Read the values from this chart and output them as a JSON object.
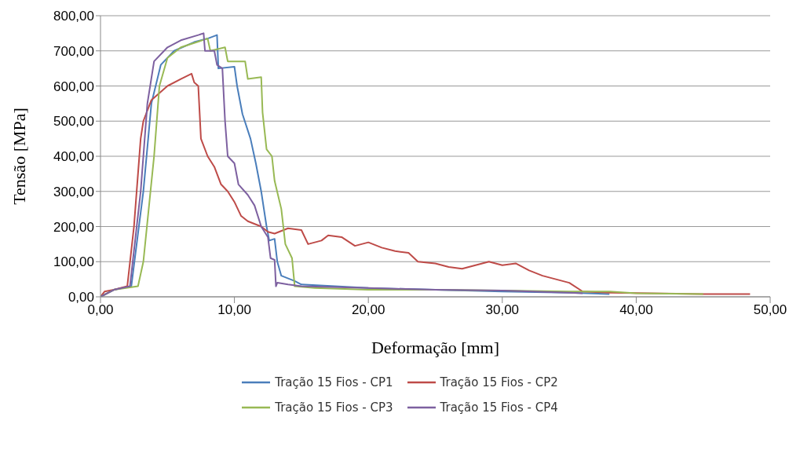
{
  "chart_data": {
    "type": "line",
    "xlabel": "Deformação [mm]",
    "ylabel": "Tensão [MPa]",
    "xlim": [
      0,
      50
    ],
    "ylim": [
      0,
      800
    ],
    "xticks": [
      {
        "value": 0,
        "label": "0,00"
      },
      {
        "value": 10,
        "label": "10,00"
      },
      {
        "value": 20,
        "label": "20,00"
      },
      {
        "value": 30,
        "label": "30,00"
      },
      {
        "value": 40,
        "label": "40,00"
      },
      {
        "value": 50,
        "label": "50,00"
      }
    ],
    "yticks": [
      {
        "value": 0,
        "label": "0,00"
      },
      {
        "value": 100,
        "label": "100,00"
      },
      {
        "value": 200,
        "label": "200,00"
      },
      {
        "value": 300,
        "label": "300,00"
      },
      {
        "value": 400,
        "label": "400,00"
      },
      {
        "value": 500,
        "label": "500,00"
      },
      {
        "value": 600,
        "label": "600,00"
      },
      {
        "value": 700,
        "label": "700,00"
      },
      {
        "value": 800,
        "label": "800,00"
      }
    ],
    "grid": "y",
    "legend": "bottom",
    "marker": "none",
    "line_style": "solid",
    "series": [
      {
        "name": "Tração 15 Fios - CP1",
        "color": "#4a7ebb",
        "x": [
          0,
          1,
          2.3,
          3.2,
          3.8,
          4.5,
          5.5,
          7,
          8,
          8.7,
          8.8,
          10,
          10.2,
          10.6,
          11.2,
          11.6,
          12,
          12.2,
          12.4,
          12.6,
          13,
          13.2,
          13.5,
          14.5,
          15,
          20,
          25,
          30,
          35,
          38
        ],
        "values": [
          0,
          20,
          30,
          300,
          550,
          660,
          700,
          725,
          735,
          745,
          650,
          655,
          600,
          520,
          450,
          380,
          300,
          250,
          200,
          160,
          165,
          100,
          60,
          45,
          35,
          25,
          20,
          15,
          12,
          8
        ]
      },
      {
        "name": "Tração 15 Fios - CP2",
        "color": "#be4b48",
        "x": [
          0,
          0.3,
          1,
          2,
          2.5,
          3,
          3.2,
          3.8,
          5,
          6,
          6.8,
          7,
          7.3,
          7.5,
          8,
          8.5,
          9,
          9.5,
          10,
          10.5,
          11,
          12,
          12.5,
          13,
          14,
          15,
          15.5,
          16.5,
          17,
          18,
          19,
          20,
          21,
          22,
          23,
          23.7,
          25,
          26,
          27,
          28,
          29,
          30,
          31,
          32,
          33,
          34,
          35,
          36,
          38,
          45,
          48.5
        ],
        "values": [
          0,
          15,
          20,
          30,
          200,
          450,
          500,
          560,
          600,
          620,
          635,
          610,
          600,
          450,
          400,
          370,
          320,
          300,
          270,
          230,
          215,
          200,
          185,
          180,
          195,
          190,
          150,
          160,
          175,
          170,
          145,
          155,
          140,
          130,
          125,
          100,
          95,
          85,
          80,
          90,
          100,
          90,
          95,
          75,
          60,
          50,
          40,
          15,
          12,
          8,
          8
        ]
      },
      {
        "name": "Tração 15 Fios - CP3",
        "color": "#98b954",
        "x": [
          0,
          1,
          2.8,
          3.2,
          4,
          4.4,
          5,
          6,
          8,
          8.2,
          9.3,
          9.5,
          10.8,
          11,
          12,
          12.1,
          12.4,
          12.8,
          13,
          13.5,
          13.8,
          14.3,
          14.5,
          16,
          20,
          25,
          30,
          35,
          38,
          40,
          45
        ],
        "values": [
          0,
          20,
          30,
          100,
          400,
          600,
          680,
          710,
          735,
          700,
          710,
          670,
          670,
          620,
          625,
          525,
          420,
          400,
          330,
          250,
          150,
          110,
          30,
          25,
          20,
          20,
          18,
          15,
          15,
          10,
          8
        ]
      },
      {
        "name": "Tração 15 Fios - CP4",
        "color": "#7d60a0",
        "x": [
          0,
          1,
          2.2,
          3,
          3.5,
          4,
          5,
          6,
          7.3,
          7.7,
          7.8,
          8.5,
          8.7,
          9.1,
          9.3,
          9.5,
          10,
          10.3,
          11,
          11.5,
          12,
          12.5,
          12.7,
          13,
          13.1,
          13.2,
          14,
          15,
          20,
          25,
          30,
          35,
          36
        ],
        "values": [
          0,
          20,
          30,
          300,
          550,
          670,
          710,
          730,
          745,
          750,
          700,
          700,
          660,
          650,
          500,
          400,
          380,
          320,
          290,
          260,
          200,
          170,
          110,
          105,
          30,
          40,
          35,
          30,
          25,
          20,
          18,
          12,
          10
        ]
      }
    ]
  }
}
